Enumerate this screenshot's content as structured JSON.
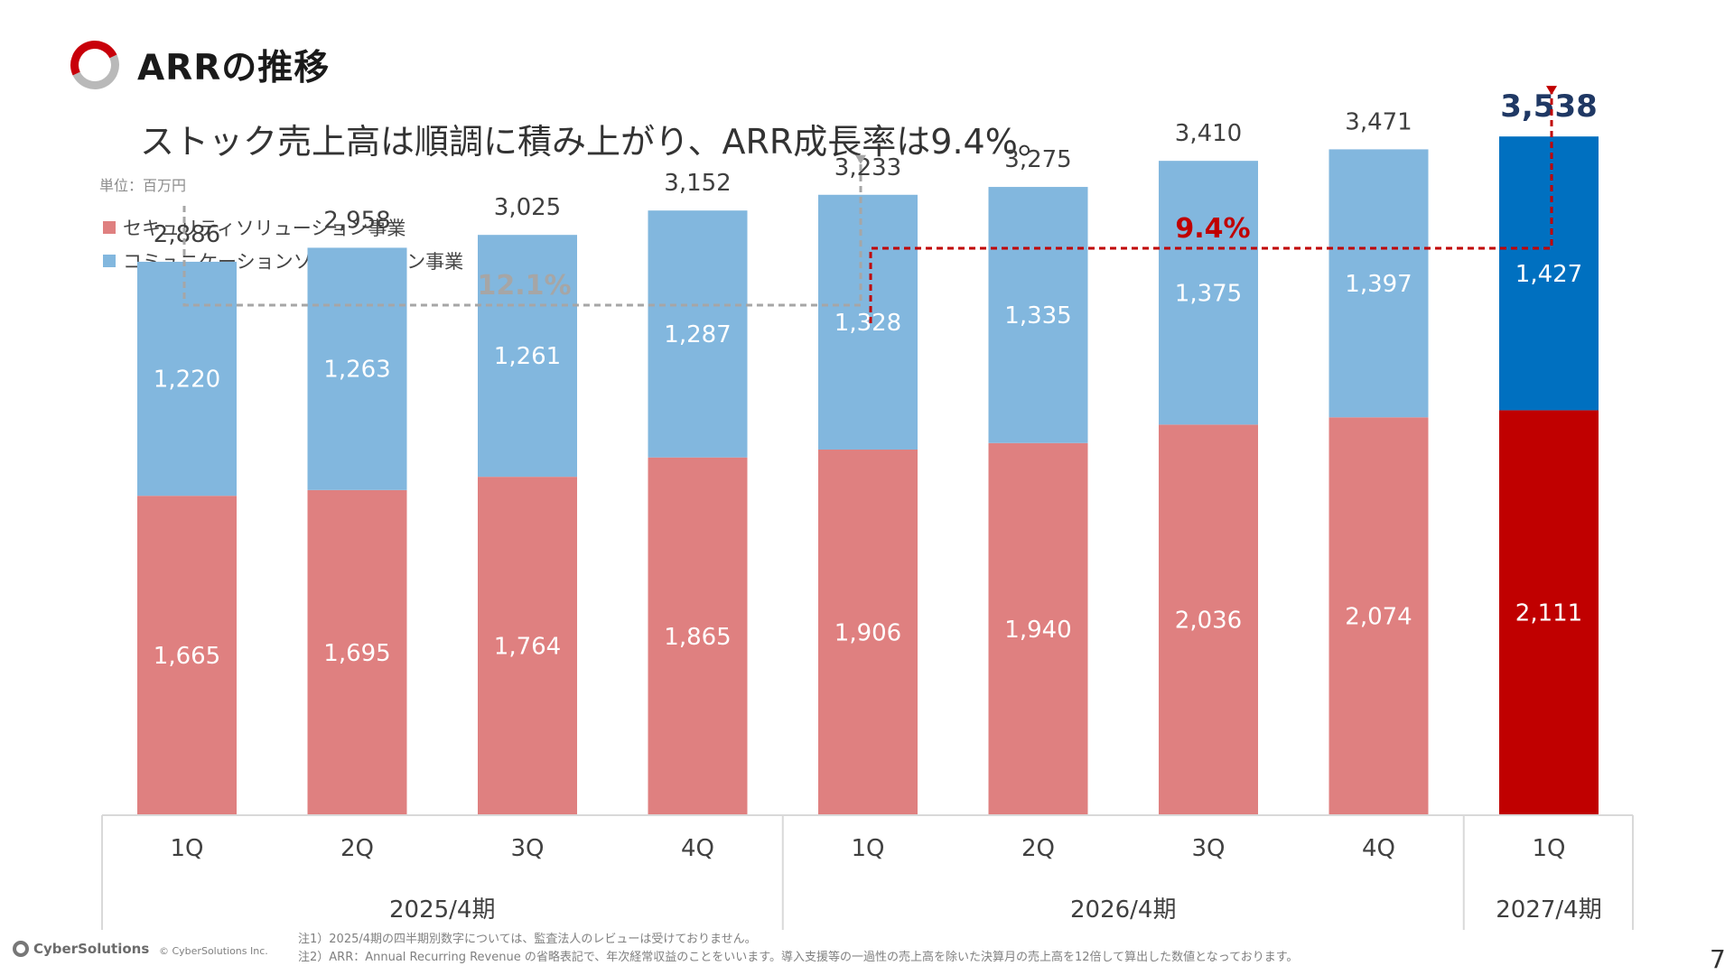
{
  "header": {
    "title": "ARRの推移",
    "subtitle": "ストック売上高は順調に積み上がり、ARR成長率は9.4%。",
    "unit": "単位：百万円"
  },
  "colors": {
    "security": "#df8080",
    "communication": "#82b7de",
    "security_latest": "#c00000",
    "communication_latest": "#0070c0",
    "growth_gray": "#a6a6a6",
    "growth_red": "#c00000",
    "latest_total": "#1f3864"
  },
  "chart_data": {
    "type": "bar",
    "stacked": true,
    "categories": [
      "1Q",
      "2Q",
      "3Q",
      "4Q",
      "1Q",
      "2Q",
      "3Q",
      "4Q",
      "1Q"
    ],
    "groups": [
      {
        "label": "2025/4期",
        "count": 4
      },
      {
        "label": "2026/4期",
        "count": 4
      },
      {
        "label": "2027/4期",
        "count": 1
      }
    ],
    "series": [
      {
        "name": "セキュリティソリューション事業",
        "values": [
          1665,
          1695,
          1764,
          1865,
          1906,
          1940,
          2036,
          2074,
          2111
        ]
      },
      {
        "name": "コミュニケーションソリューション事業",
        "values": [
          1220,
          1263,
          1261,
          1287,
          1328,
          1335,
          1375,
          1397,
          1427
        ]
      }
    ],
    "totals": [
      "2,886",
      "2,958",
      "3,025",
      "3,152",
      "3,233",
      "3,275",
      "3,410",
      "3,471",
      "3,538"
    ],
    "annotations": [
      {
        "label": "12.1%",
        "from_index": 0,
        "to_index": 4,
        "color": "gray"
      },
      {
        "label": "9.4%",
        "from_index": 4,
        "to_index": 8,
        "color": "red"
      }
    ],
    "ylim": [
      0,
      4300
    ],
    "grid": false,
    "legend_position": "top-left"
  },
  "footer": {
    "brand": "CyberSolutions",
    "copyright": "© CyberSolutions Inc.",
    "notes": [
      "注1）2025/4期の四半期別数字については、監査法人のレビューは受けておりません。",
      "注2）ARR：Annual Recurring Revenue の省略表記で、年次経常収益のことをいいます。導入支援等の一過性の売上高を除いた決算月の売上高を12倍して算出した数値となっております。"
    ],
    "page_number": "7"
  }
}
